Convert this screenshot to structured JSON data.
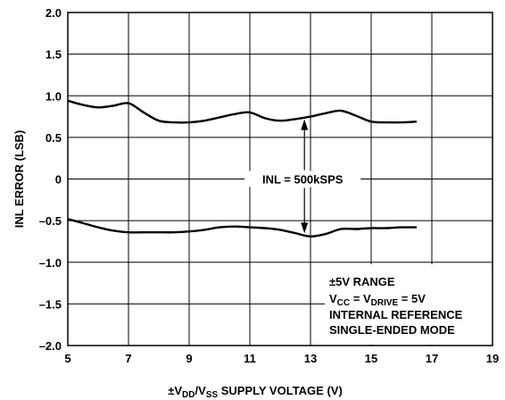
{
  "chart_data": {
    "type": "line",
    "xlabel": {
      "prefix": "±V",
      "sub1": "DD",
      "mid": "/V",
      "sub2": "SS",
      "suffix": " SUPPLY VOLTAGE (V)"
    },
    "ylabel": "INL ERROR (LSB)",
    "xlim": [
      5,
      19
    ],
    "ylim": [
      -2.0,
      2.0
    ],
    "x_ticks": [
      5,
      7,
      9,
      11,
      13,
      15,
      17,
      19
    ],
    "x_tick_labels": [
      "5",
      "7",
      "9",
      "11",
      "13",
      "15",
      "17",
      "19"
    ],
    "y_ticks": [
      2.0,
      1.5,
      1.0,
      0.5,
      0,
      -0.5,
      -1.0,
      -1.5,
      -2.0
    ],
    "y_tick_labels": [
      "2.0",
      "1.5",
      "1.0",
      "0.5",
      "0",
      "–0.5",
      "–1.0",
      "–1.5",
      "–2.0"
    ],
    "grid": true,
    "series": [
      {
        "x": [
          5.0,
          5.5,
          6.0,
          6.5,
          7.0,
          7.5,
          8.0,
          8.5,
          9.0,
          9.5,
          10.0,
          10.5,
          11.0,
          11.5,
          12.0,
          12.5,
          13.0,
          13.5,
          14.0,
          14.5,
          15.0,
          15.5,
          16.0,
          16.5
        ],
        "y": [
          0.94,
          0.89,
          0.86,
          0.88,
          0.91,
          0.8,
          0.7,
          0.68,
          0.68,
          0.7,
          0.74,
          0.78,
          0.8,
          0.73,
          0.7,
          0.72,
          0.75,
          0.79,
          0.82,
          0.76,
          0.69,
          0.68,
          0.68,
          0.69
        ],
        "color": "#000000"
      },
      {
        "x": [
          5.0,
          5.5,
          6.0,
          6.5,
          7.0,
          7.5,
          8.0,
          8.5,
          9.0,
          9.5,
          10.0,
          10.5,
          11.0,
          11.5,
          12.0,
          12.5,
          13.0,
          13.5,
          14.0,
          14.5,
          15.0,
          15.5,
          16.0,
          16.5
        ],
        "y": [
          -0.48,
          -0.53,
          -0.58,
          -0.62,
          -0.64,
          -0.64,
          -0.64,
          -0.64,
          -0.63,
          -0.61,
          -0.58,
          -0.57,
          -0.58,
          -0.59,
          -0.61,
          -0.65,
          -0.69,
          -0.66,
          -0.6,
          -0.6,
          -0.59,
          -0.59,
          -0.58,
          -0.58
        ],
        "color": "#000000"
      }
    ],
    "annotations": {
      "inl_label": "INL = 500kSPS",
      "inl_arrow_x": 12.8,
      "box": {
        "line1": "±5V RANGE",
        "line2": {
          "a": "V",
          "a_sub": "CC",
          "b": " = V",
          "b_sub": "DRIVE",
          "c": " = 5V"
        },
        "line3": "INTERNAL REFERENCE",
        "line4": "SINGLE-ENDED MODE"
      }
    }
  }
}
